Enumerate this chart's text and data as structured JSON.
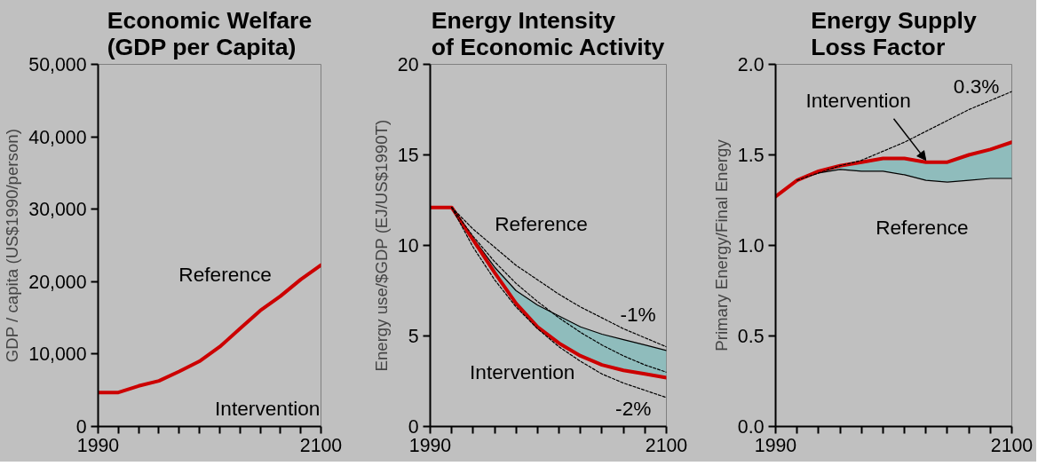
{
  "chart_data": [
    {
      "type": "line",
      "title": "Economic Welfare\n(GDP per Capita)",
      "ylabel": "GDP / capita (US$1990/person)",
      "x": [
        1990,
        2000,
        2010,
        2020,
        2030,
        2040,
        2050,
        2060,
        2070,
        2080,
        2090,
        2100
      ],
      "series": [
        {
          "color": "#cc0000",
          "values": [
            4700,
            4700,
            5600,
            6300,
            7600,
            9000,
            11000,
            13500,
            16000,
            18000,
            20300,
            22300
          ]
        }
      ],
      "xlim": [
        1990,
        2100
      ],
      "ylim": [
        0,
        50000
      ],
      "xticks": [
        1990,
        {
          "value": 2000,
          "label": null
        },
        {
          "value": 2010,
          "label": null
        },
        {
          "value": 2020,
          "label": null
        },
        {
          "value": 2030,
          "label": null
        },
        {
          "value": 2040,
          "label": null
        },
        {
          "value": 2050,
          "label": null
        },
        {
          "value": 2060,
          "label": null
        },
        {
          "value": 2070,
          "label": null
        },
        {
          "value": 2080,
          "label": null
        },
        {
          "value": 2090,
          "label": null
        },
        2100
      ],
      "yticks": [
        0,
        {
          "value": 10000,
          "label": "10,000"
        },
        {
          "value": 20000,
          "label": "20,000"
        },
        {
          "value": 30000,
          "label": "30,000"
        },
        {
          "value": 40000,
          "label": "40,000"
        },
        {
          "value": 50000,
          "label": "50,000"
        }
      ],
      "annotations": [
        "Reference",
        "Intervention"
      ],
      "grid": false,
      "line_style": "solid"
    },
    {
      "type": "line",
      "title": "Energy Intensity\nof Economic Activity",
      "ylabel": "Energy use/$GDP (EJ/US$1990T)",
      "x": [
        1990,
        2000,
        2010,
        2020,
        2030,
        2040,
        2050,
        2060,
        2070,
        2080,
        2090,
        2100
      ],
      "series": [
        {
          "color": "#000000",
          "values": [
            12.1,
            12.1,
            10.4,
            8.8,
            7.5,
            6.7,
            6.1,
            5.5,
            5.1,
            4.8,
            4.5,
            4.2
          ]
        },
        {
          "color": "#cc0000",
          "values": [
            12.1,
            12.1,
            10.3,
            8.5,
            6.8,
            5.5,
            4.6,
            3.9,
            3.4,
            3.1,
            2.9,
            2.7
          ],
          "lower": [
            12.1,
            12.1,
            10.3,
            8.5,
            6.8,
            5.5,
            4.6,
            3.9,
            3.4,
            3.1,
            2.9,
            2.7
          ],
          "upper": [
            12.1,
            12.1,
            10.4,
            8.8,
            7.5,
            6.7,
            6.1,
            5.5,
            5.1,
            4.8,
            4.5,
            4.2
          ]
        },
        {
          "color": "#000000",
          "line_style": "dashed",
          "x": [
            2000,
            2010,
            2020,
            2030,
            2040,
            2050,
            2060,
            2070,
            2080,
            2090,
            2100
          ],
          "values": [
            12.1,
            10.9,
            9.9,
            8.9,
            8.1,
            7.3,
            6.6,
            6.0,
            5.4,
            4.9,
            4.4
          ]
        },
        {
          "color": "#000000",
          "line_style": "dashed",
          "x": [
            2000,
            2010,
            2020,
            2030,
            2040,
            2050,
            2060,
            2070,
            2080,
            2090,
            2100
          ],
          "values": [
            12.1,
            10.5,
            9.1,
            7.9,
            6.9,
            6.0,
            5.2,
            4.5,
            3.9,
            3.4,
            3.0
          ]
        },
        {
          "color": "#000000",
          "line_style": "dashed",
          "x": [
            2000,
            2010,
            2020,
            2030,
            2040,
            2050,
            2060,
            2070,
            2080,
            2090,
            2100
          ],
          "values": [
            12.1,
            9.9,
            8.1,
            6.6,
            5.4,
            4.4,
            3.6,
            2.9,
            2.4,
            2.0,
            1.6
          ]
        }
      ],
      "xlim": [
        1990,
        2100
      ],
      "ylim": [
        0,
        20
      ],
      "xticks": [
        1990,
        {
          "value": 2000,
          "label": null
        },
        {
          "value": 2010,
          "label": null
        },
        {
          "value": 2020,
          "label": null
        },
        {
          "value": 2030,
          "label": null
        },
        {
          "value": 2040,
          "label": null
        },
        {
          "value": 2050,
          "label": null
        },
        {
          "value": 2060,
          "label": null
        },
        {
          "value": 2070,
          "label": null
        },
        {
          "value": 2080,
          "label": null
        },
        {
          "value": 2090,
          "label": null
        },
        2100
      ],
      "yticks": [
        0,
        5,
        10,
        15,
        20
      ],
      "annotations": [
        "Reference",
        "Intervention",
        "-1%",
        "-2%"
      ],
      "grid": false,
      "line_style": "solid"
    },
    {
      "type": "line",
      "title": "Energy Supply\nLoss Factor",
      "ylabel": "Primary Energy/Final Energy",
      "x": [
        1990,
        2000,
        2010,
        2020,
        2030,
        2040,
        2050,
        2060,
        2070,
        2080,
        2090,
        2100
      ],
      "series": [
        {
          "color": "#000000",
          "values": [
            1.27,
            1.36,
            1.4,
            1.42,
            1.41,
            1.41,
            1.39,
            1.36,
            1.35,
            1.36,
            1.37,
            1.37
          ]
        },
        {
          "color": "#cc0000",
          "values": [
            1.27,
            1.36,
            1.41,
            1.44,
            1.46,
            1.48,
            1.48,
            1.46,
            1.46,
            1.5,
            1.53,
            1.57
          ],
          "lower": [
            1.27,
            1.36,
            1.4,
            1.42,
            1.41,
            1.41,
            1.39,
            1.36,
            1.35,
            1.36,
            1.37,
            1.37
          ],
          "upper": [
            1.27,
            1.36,
            1.41,
            1.44,
            1.46,
            1.48,
            1.48,
            1.46,
            1.46,
            1.5,
            1.53,
            1.57
          ]
        },
        {
          "color": "#000000",
          "line_style": "dashed",
          "x": [
            2000,
            2010,
            2020,
            2030,
            2040,
            2050,
            2060,
            2070,
            2080,
            2090,
            2100
          ],
          "values": [
            1.36,
            1.4,
            1.44,
            1.47,
            1.52,
            1.57,
            1.63,
            1.69,
            1.75,
            1.8,
            1.85
          ]
        }
      ],
      "xlim": [
        1990,
        2100
      ],
      "ylim": [
        0,
        2
      ],
      "xticks": [
        1990,
        {
          "value": 2000,
          "label": null
        },
        {
          "value": 2010,
          "label": null
        },
        {
          "value": 2020,
          "label": null
        },
        {
          "value": 2030,
          "label": null
        },
        {
          "value": 2040,
          "label": null
        },
        {
          "value": 2050,
          "label": null
        },
        {
          "value": 2060,
          "label": null
        },
        {
          "value": 2070,
          "label": null
        },
        {
          "value": 2080,
          "label": null
        },
        {
          "value": 2090,
          "label": null
        },
        2100
      ],
      "yticks": [
        {
          "value": 0,
          "label": "0.0"
        },
        0.5,
        {
          "value": 1,
          "label": "1.0"
        },
        1.5,
        {
          "value": 2,
          "label": "2.0"
        }
      ],
      "annotations": [
        {
          "text": "Intervention",
          "x": 2060,
          "y": 1.47
        },
        "0.3%",
        "Reference"
      ],
      "grid": false,
      "line_style": "solid"
    }
  ]
}
